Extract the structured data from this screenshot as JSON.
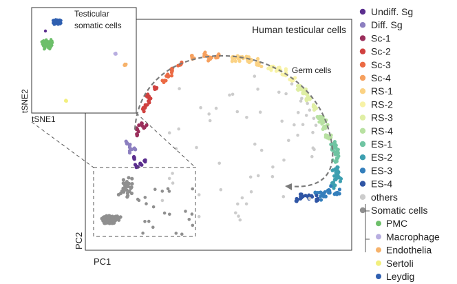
{
  "chart_data": [
    {
      "type": "scatter",
      "title": "Human testicular cells",
      "xlabel": "PC1",
      "ylabel": "PC2",
      "annotation": "Germ cells",
      "zoom_region": "bottom-left",
      "legend_position": "right",
      "series": [
        {
          "name": "Undiff. Sg",
          "color": "#5b2e8e",
          "x": [
            0.62,
            0.58,
            0.66,
            0.7,
            0.6
          ],
          "y": [
            0.56,
            0.52,
            0.54,
            0.5,
            0.48
          ]
        },
        {
          "name": "Diff. Sg",
          "color": "#8c7fc0",
          "x": [
            0.56,
            0.6,
            0.58,
            0.54,
            0.62
          ],
          "y": [
            0.64,
            0.68,
            0.6,
            0.66,
            0.62
          ]
        },
        {
          "name": "Sc-1",
          "color": "#9b2f5c",
          "x": [
            0.62,
            0.6,
            0.66,
            0.58,
            0.64
          ],
          "y": [
            0.78,
            0.82,
            0.75,
            0.8,
            0.72
          ]
        },
        {
          "name": "Sc-2",
          "color": "#d0413f",
          "x": [
            0.64,
            0.68,
            0.66,
            0.7,
            0.62
          ],
          "y": [
            0.92,
            0.96,
            0.88,
            0.94,
            0.9
          ]
        },
        {
          "name": "Sc-3",
          "color": "#eb6a44",
          "x": [
            0.76,
            0.8,
            0.84,
            0.72,
            0.86
          ],
          "y": [
            1.1,
            1.14,
            1.18,
            1.06,
            1.2
          ]
        },
        {
          "name": "Sc-4",
          "color": "#f6a05e",
          "x": [
            1.0,
            1.08,
            1.16,
            0.94,
            1.12
          ],
          "y": [
            1.26,
            1.28,
            1.27,
            1.24,
            1.29
          ]
        },
        {
          "name": "RS-1",
          "color": "#fbd283",
          "x": [
            1.3,
            1.4,
            1.5,
            1.34,
            1.46
          ],
          "y": [
            1.26,
            1.23,
            1.19,
            1.25,
            1.21
          ]
        },
        {
          "name": "RS-2",
          "color": "#f7f2a6",
          "x": [
            1.6,
            1.68,
            1.76,
            1.64,
            1.72
          ],
          "y": [
            1.12,
            1.06,
            0.98,
            1.09,
            1.02
          ]
        },
        {
          "name": "RS-3",
          "color": "#dfeea4",
          "x": [
            1.84,
            1.9,
            1.96,
            1.86,
            1.93
          ],
          "y": [
            0.88,
            0.78,
            0.68,
            0.84,
            0.74
          ]
        },
        {
          "name": "RS-4",
          "color": "#b8e1a2",
          "x": [
            2.02,
            2.06,
            2.1,
            2.04,
            2.08
          ],
          "y": [
            0.56,
            0.48,
            0.4,
            0.52,
            0.44
          ]
        },
        {
          "name": "ES-1",
          "color": "#6fc4a2",
          "x": [
            2.1,
            2.12,
            2.08,
            2.14,
            2.1
          ],
          "y": [
            0.34,
            0.28,
            0.3,
            0.24,
            0.32
          ]
        },
        {
          "name": "ES-2",
          "color": "#3d9fb0",
          "x": [
            2.1,
            2.14,
            2.06,
            2.12,
            2.08
          ],
          "y": [
            0.2,
            0.16,
            0.18,
            0.12,
            0.22
          ]
        },
        {
          "name": "ES-3",
          "color": "#347fbc",
          "x": [
            2.02,
            2.06,
            1.98,
            2.04,
            2.0
          ],
          "y": [
            0.08,
            0.04,
            0.06,
            0.1,
            0.02
          ]
        },
        {
          "name": "ES-4",
          "color": "#2f55a4",
          "x": [
            1.9,
            1.86,
            1.94,
            1.82,
            1.88
          ],
          "y": [
            0.06,
            0.12,
            0.02,
            0.1,
            0.08
          ]
        },
        {
          "name": "others",
          "color": "#cccccc",
          "x": [
            0.9,
            1.1,
            1.3,
            1.5,
            1.6
          ],
          "y": [
            0.7,
            0.5,
            0.8,
            0.4,
            0.6
          ]
        },
        {
          "name": "Somatic cells",
          "color": "#8f8f8f",
          "x": [
            0.1,
            0.2,
            0.3,
            0.15,
            0.35
          ],
          "y": [
            0.1,
            0.2,
            0.15,
            0.05,
            0.3
          ]
        }
      ],
      "somatic_subtypes": [
        {
          "name": "PMC",
          "color": "#6dbf6a"
        },
        {
          "name": "Macrophage",
          "color": "#b8aee0"
        },
        {
          "name": "Endothelia",
          "color": "#f6b26b"
        },
        {
          "name": "Sertoli",
          "color": "#f2ef7d"
        },
        {
          "name": "Leydig",
          "color": "#2f5fb0"
        }
      ]
    },
    {
      "type": "scatter",
      "title": "Testicular somatic cells",
      "xlabel": "tSNE1",
      "ylabel": "tSNE2",
      "series": [
        {
          "name": "Leydig",
          "color": "#2f5fb0",
          "x": [
            0.55,
            0.6,
            0.5
          ],
          "y": [
            0.9,
            0.86,
            0.92
          ]
        },
        {
          "name": "PMC",
          "color": "#6dbf6a",
          "x": [
            0.2,
            0.3,
            0.15
          ],
          "y": [
            0.7,
            0.66,
            0.72
          ]
        },
        {
          "name": "Macrophage",
          "color": "#b8aee0",
          "x": [
            0.8
          ],
          "y": [
            0.62
          ]
        },
        {
          "name": "Endothelia",
          "color": "#f6b26b",
          "x": [
            0.92,
            0.9
          ],
          "y": [
            0.56,
            0.54
          ]
        },
        {
          "name": "Sertoli",
          "color": "#f2ef7d",
          "x": [
            0.35,
            0.38
          ],
          "y": [
            0.1,
            0.08
          ]
        }
      ]
    }
  ]
}
